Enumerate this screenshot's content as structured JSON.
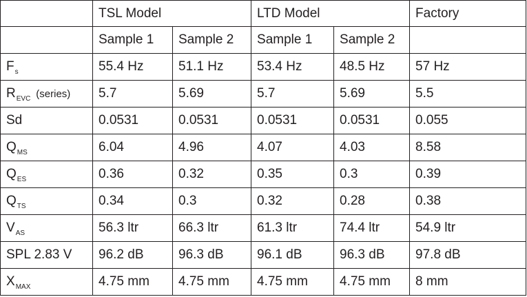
{
  "header": {
    "groups": [
      {
        "label": "TSL Model"
      },
      {
        "label": "LTD Model"
      },
      {
        "label": "Factory"
      }
    ],
    "samples": [
      "Sample 1",
      "Sample 2",
      "Sample 1",
      "Sample 2"
    ]
  },
  "rows": [
    {
      "param": {
        "main": "F",
        "sub": "s",
        "note": ""
      },
      "values": [
        "55.4 Hz",
        "51.1 Hz",
        "53.4 Hz",
        "48.5 Hz",
        "57 Hz"
      ]
    },
    {
      "param": {
        "main": "R",
        "sub": "EVC",
        "note": "(series)"
      },
      "values": [
        "5.7",
        "5.69",
        "5.7",
        "5.69",
        "5.5"
      ]
    },
    {
      "param": {
        "main": "Sd",
        "sub": "",
        "note": ""
      },
      "values": [
        "0.0531",
        "0.0531",
        "0.0531",
        "0.0531",
        "0.055"
      ]
    },
    {
      "param": {
        "main": "Q",
        "sub": "MS",
        "note": ""
      },
      "values": [
        "6.04",
        "4.96",
        "4.07",
        "4.03",
        "8.58"
      ]
    },
    {
      "param": {
        "main": "Q",
        "sub": "ES",
        "note": ""
      },
      "values": [
        "0.36",
        "0.32",
        "0.35",
        "0.3",
        "0.39"
      ]
    },
    {
      "param": {
        "main": "Q",
        "sub": "TS",
        "note": ""
      },
      "values": [
        "0.34",
        "0.3",
        "0.32",
        "0.28",
        "0.38"
      ]
    },
    {
      "param": {
        "main": "V",
        "sub": "AS",
        "note": ""
      },
      "values": [
        "56.3 ltr",
        "66.3 ltr",
        "61.3 ltr",
        "74.4 ltr",
        "54.9 ltr"
      ]
    },
    {
      "param": {
        "main": "SPL 2.83 V",
        "sub": "",
        "note": ""
      },
      "values": [
        "96.2 dB",
        "96.3 dB",
        "96.1 dB",
        "96.3 dB",
        "97.8 dB"
      ]
    },
    {
      "param": {
        "main": "X",
        "sub": "MAX",
        "note": ""
      },
      "values": [
        "4.75 mm",
        "4.75 mm",
        "4.75 mm",
        "4.75 mm",
        "8 mm"
      ]
    }
  ]
}
